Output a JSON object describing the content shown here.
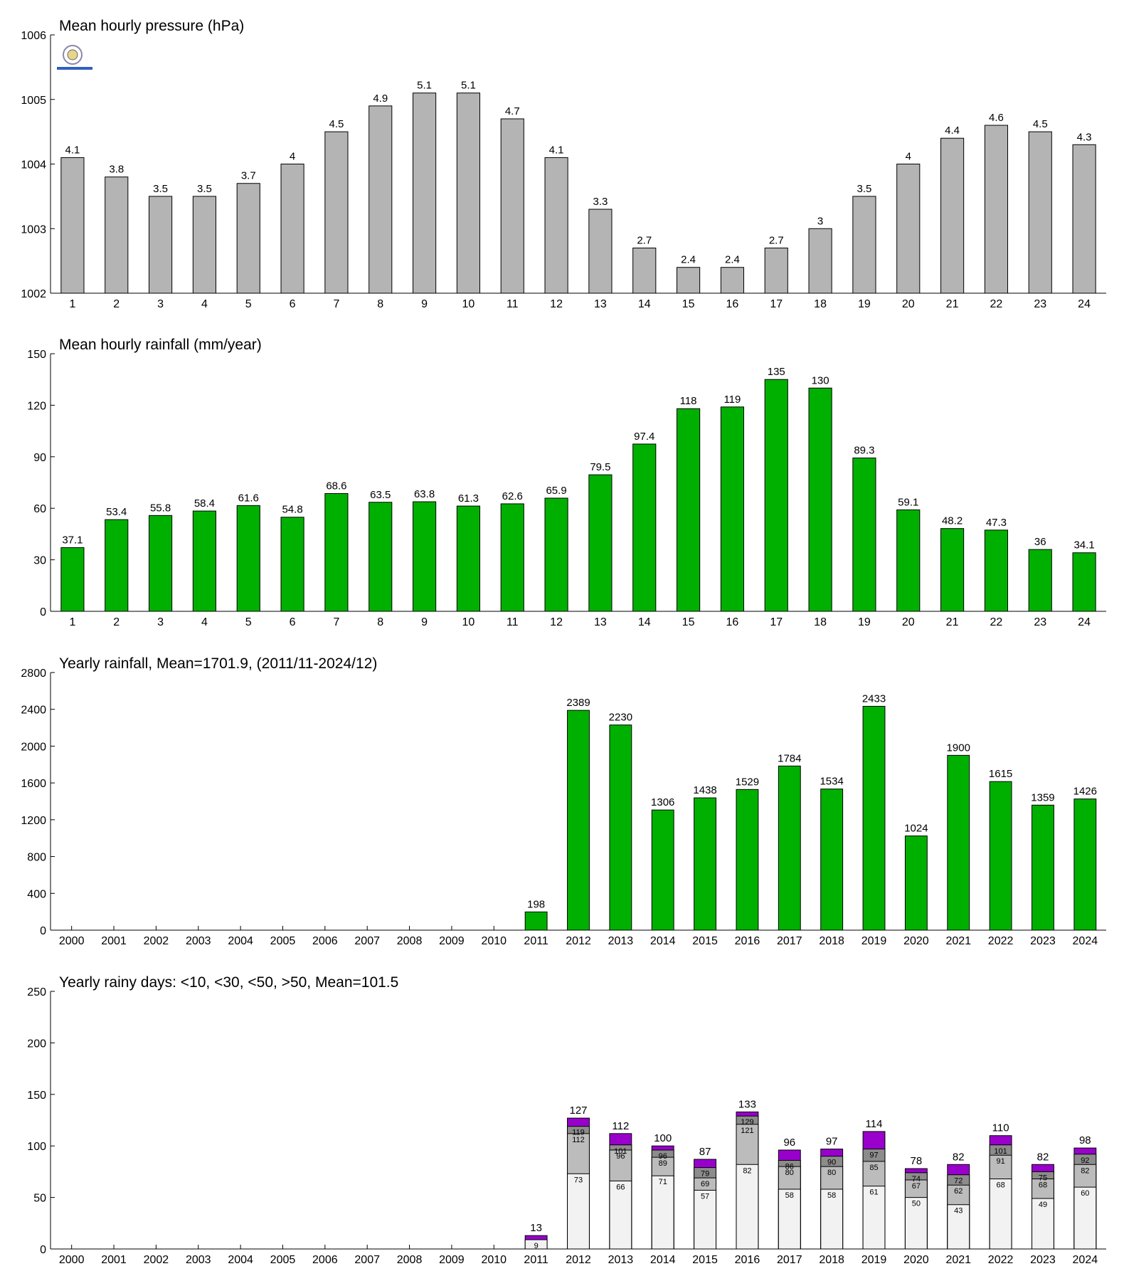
{
  "chart_data": [
    {
      "type": "bar",
      "title": "Mean hourly pressure (hPa)",
      "categories": [
        "1",
        "2",
        "3",
        "4",
        "5",
        "6",
        "7",
        "8",
        "9",
        "10",
        "11",
        "12",
        "13",
        "14",
        "15",
        "16",
        "17",
        "18",
        "19",
        "20",
        "21",
        "22",
        "23",
        "24"
      ],
      "values": [
        1004.1,
        1003.8,
        1003.5,
        1003.5,
        1003.7,
        1004,
        1004.5,
        1004.9,
        1005.1,
        1005.1,
        1004.7,
        1004.1,
        1003.3,
        1002.7,
        1002.4,
        1002.4,
        1002.7,
        1003,
        1003.5,
        1004,
        1004.4,
        1004.6,
        1004.5,
        1004.3
      ],
      "value_labels": [
        "4.1",
        "3.8",
        "3.5",
        "3.5",
        "3.7",
        "4",
        "4.5",
        "4.9",
        "5.1",
        "5.1",
        "4.7",
        "4.1",
        "3.3",
        "2.7",
        "2.4",
        "2.4",
        "2.7",
        "3",
        "3.5",
        "4",
        "4.4",
        "4.6",
        "4.5",
        "4.3"
      ],
      "color": "#b4b4b4",
      "ylim": [
        1002,
        1006
      ],
      "yticks": [
        1002,
        1003,
        1004,
        1005,
        1006
      ]
    },
    {
      "type": "bar",
      "title": "Mean hourly rainfall (mm/year)",
      "categories": [
        "1",
        "2",
        "3",
        "4",
        "5",
        "6",
        "7",
        "8",
        "9",
        "10",
        "11",
        "12",
        "13",
        "14",
        "15",
        "16",
        "17",
        "18",
        "19",
        "20",
        "21",
        "22",
        "23",
        "24"
      ],
      "values": [
        37.1,
        53.4,
        55.8,
        58.4,
        61.6,
        54.8,
        68.6,
        63.5,
        63.8,
        61.3,
        62.6,
        65.9,
        79.5,
        97.4,
        118,
        119,
        135,
        130,
        89.3,
        59.1,
        48.2,
        47.3,
        36,
        34.1
      ],
      "color": "#00b000",
      "ylim": [
        0,
        150
      ],
      "yticks": [
        0,
        30,
        60,
        90,
        120,
        150
      ]
    },
    {
      "type": "bar",
      "title": "Yearly rainfall, Mean=1701.9, (2011/11-2024/12)",
      "categories": [
        "2000",
        "2001",
        "2002",
        "2003",
        "2004",
        "2005",
        "2006",
        "2007",
        "2008",
        "2009",
        "2010",
        "2011",
        "2012",
        "2013",
        "2014",
        "2015",
        "2016",
        "2017",
        "2018",
        "2019",
        "2020",
        "2021",
        "2022",
        "2023",
        "2024"
      ],
      "values": [
        null,
        null,
        null,
        null,
        null,
        null,
        null,
        null,
        null,
        null,
        null,
        198,
        2389,
        2230,
        1306,
        1438,
        1529,
        1784,
        1534,
        2433,
        1024,
        1900,
        1615,
        1359,
        1426
      ],
      "color": "#00b000",
      "ylim": [
        0,
        2800
      ],
      "yticks": [
        0,
        400,
        800,
        1200,
        1600,
        2000,
        2400,
        2800
      ]
    },
    {
      "type": "bar",
      "title": "Yearly rainy days: <10, <30, <50, >50, Mean=101.5",
      "categories": [
        "2000",
        "2001",
        "2002",
        "2003",
        "2004",
        "2005",
        "2006",
        "2007",
        "2008",
        "2009",
        "2010",
        "2011",
        "2012",
        "2013",
        "2014",
        "2015",
        "2016",
        "2017",
        "2018",
        "2019",
        "2020",
        "2021",
        "2022",
        "2023",
        "2024"
      ],
      "series": [
        {
          "color": "#9900cc",
          "values": [
            null,
            null,
            null,
            null,
            null,
            null,
            null,
            null,
            null,
            null,
            null,
            13,
            127,
            112,
            100,
            87,
            133,
            96,
            97,
            114,
            78,
            82,
            110,
            82,
            98
          ]
        },
        {
          "color": "#8c8c8c",
          "values": [
            null,
            null,
            null,
            null,
            null,
            null,
            null,
            null,
            null,
            null,
            null,
            null,
            119,
            101,
            96,
            79,
            129,
            86,
            90,
            97,
            74,
            72,
            101,
            75,
            92
          ]
        },
        {
          "color": "#bcbcbc",
          "values": [
            null,
            null,
            null,
            null,
            null,
            null,
            null,
            null,
            null,
            null,
            null,
            null,
            112,
            96,
            89,
            69,
            121,
            80,
            80,
            85,
            67,
            62,
            91,
            68,
            82
          ]
        },
        {
          "color": "#f2f2f2",
          "values": [
            null,
            null,
            null,
            null,
            null,
            null,
            null,
            null,
            null,
            null,
            null,
            9,
            73,
            66,
            71,
            57,
            82,
            58,
            58,
            61,
            50,
            43,
            68,
            49,
            60
          ]
        }
      ],
      "ylim": [
        0,
        250
      ],
      "yticks": [
        0,
        50,
        100,
        150,
        200,
        250
      ]
    }
  ]
}
